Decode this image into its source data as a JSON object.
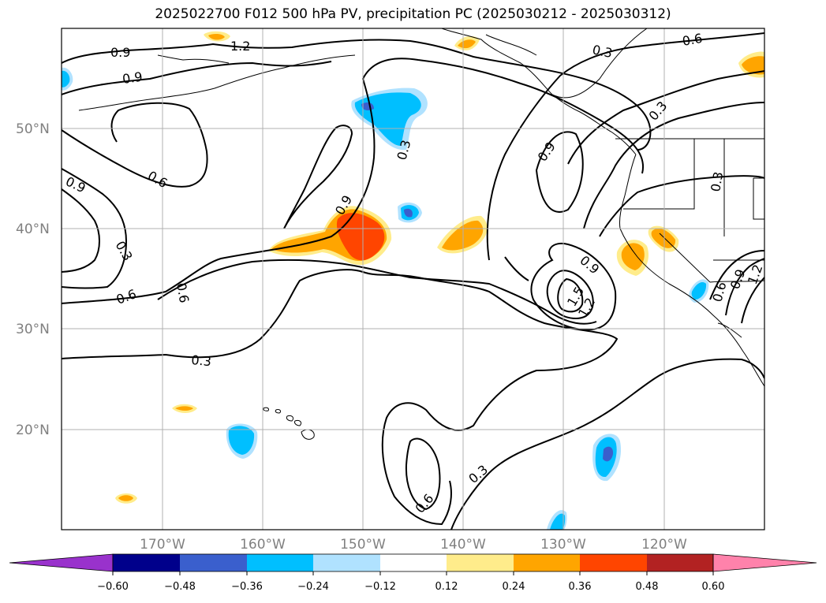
{
  "title": "2025022700 F012 500 hPa PV, precipitation PC (2025030212 - 2025030312)",
  "lat_labels": [
    "50°N",
    "40°N",
    "30°N",
    "20°N"
  ],
  "lon_labels": [
    "170°W",
    "160°W",
    "150°W",
    "140°W",
    "130°W",
    "120°W"
  ],
  "colorbar": {
    "ticks": [
      "−0.60",
      "−0.48",
      "−0.36",
      "−0.24",
      "−0.12",
      "0.12",
      "0.24",
      "0.36",
      "0.48",
      "0.60"
    ],
    "colors": [
      "#9932cc",
      "#00008b",
      "#3a5fcd",
      "#00bfff",
      "#b0e2ff",
      "#ffffff",
      "#ffec8b",
      "#ffa500",
      "#ff4500",
      "#b22222",
      "#ff82ab"
    ]
  },
  "contour_labels": {
    "c1": "0.9",
    "c2": "1.2",
    "c3": "0.3",
    "c4": "0.6",
    "c5": "0.9",
    "c6": "0.6",
    "c7": "0.9",
    "c8": "0.3",
    "c9": "0.6",
    "c10": "0.6",
    "c11": "0.3",
    "c12": "0.9",
    "c13": "0.3",
    "c14": "0.9",
    "c15": "0.3",
    "c16": "0.3",
    "c17": "0.9",
    "c18": "1.5",
    "c19": "1.2",
    "c20": "0.6",
    "c21": "0.9",
    "c22": "1.2",
    "c23": "0.3",
    "c24": "0.6"
  }
}
